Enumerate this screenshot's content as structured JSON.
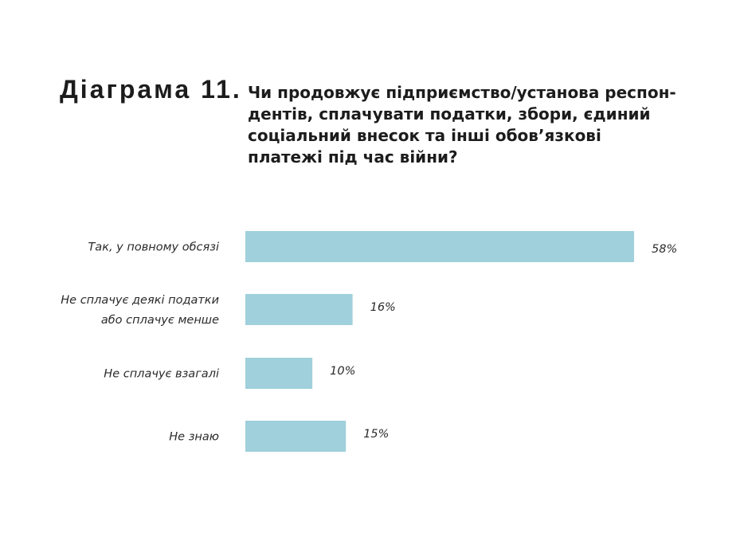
{
  "heading": {
    "label": "Діаграма 11.",
    "title": "Чи продовжує підприємство/установа респон-дентів, сплачувати податки, збори, єдиний соціальний внесок та інші обов’язкові платежі під час війни?"
  },
  "colors": {
    "bar": "#9fd0db",
    "text": "#1c1c1c"
  },
  "chart_data": {
    "type": "bar",
    "orientation": "horizontal",
    "categories": [
      [
        "Так, у повному обсязі"
      ],
      [
        "Не сплачує деякі податки",
        "або сплачує менше"
      ],
      [
        "Не сплачує взагалі"
      ],
      [
        "Не знаю"
      ]
    ],
    "values": [
      58,
      16,
      10,
      15
    ],
    "value_labels": [
      "58%",
      "16%",
      "10%",
      "15%"
    ],
    "unit": "%",
    "xlim": [
      0,
      58
    ],
    "grid": false,
    "legend": "none"
  }
}
